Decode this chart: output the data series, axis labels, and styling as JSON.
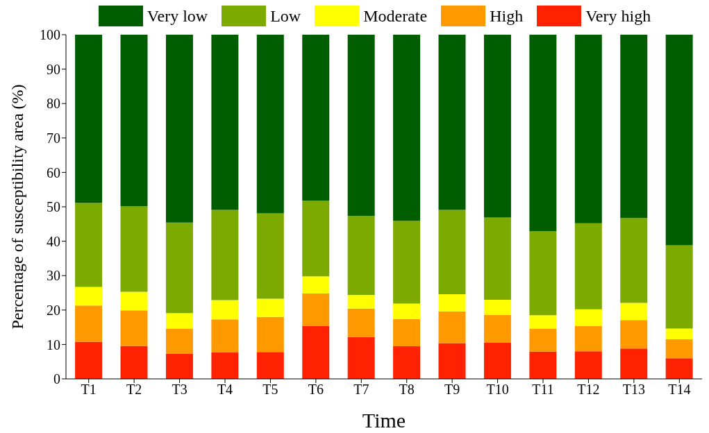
{
  "chart_data": {
    "type": "bar",
    "stacked": true,
    "xlabel": "Time",
    "ylabel": "Percentage of susceptibility area (%)",
    "categories": [
      "T1",
      "T2",
      "T3",
      "T4",
      "T5",
      "T6",
      "T7",
      "T8",
      "T9",
      "T10",
      "T11",
      "T12",
      "T13",
      "T14"
    ],
    "series": [
      {
        "name": "Very high",
        "color": "#ff2200",
        "values": [
          10.8,
          9.6,
          7.3,
          7.7,
          7.8,
          15.3,
          12.2,
          9.5,
          10.4,
          10.6,
          7.9,
          8.0,
          8.8,
          6.0
        ]
      },
      {
        "name": "High",
        "color": "#ff9900",
        "values": [
          10.5,
          10.3,
          7.3,
          9.6,
          10.2,
          9.5,
          8.2,
          7.9,
          9.2,
          8.0,
          6.7,
          7.4,
          8.3,
          5.5
        ]
      },
      {
        "name": "Moderate",
        "color": "#ffff00",
        "values": [
          5.4,
          5.4,
          4.5,
          5.6,
          5.3,
          5.0,
          4.0,
          4.5,
          5.0,
          4.4,
          3.9,
          4.8,
          5.0,
          3.1
        ]
      },
      {
        "name": "Low",
        "color": "#7caa00",
        "values": [
          24.4,
          24.9,
          26.3,
          26.2,
          24.8,
          22.0,
          23.0,
          24.0,
          24.5,
          23.9,
          24.4,
          25.0,
          24.6,
          24.2
        ]
      },
      {
        "name": "Very low",
        "color": "#005e00",
        "values": [
          48.9,
          49.8,
          54.6,
          50.9,
          51.9,
          48.2,
          52.6,
          54.1,
          50.9,
          53.1,
          57.1,
          54.8,
          53.3,
          61.2
        ]
      }
    ],
    "ylim": [
      0,
      100
    ],
    "yticks": [
      0,
      10,
      20,
      30,
      40,
      50,
      60,
      70,
      80,
      90,
      100
    ],
    "grid": false,
    "legend": "top"
  }
}
